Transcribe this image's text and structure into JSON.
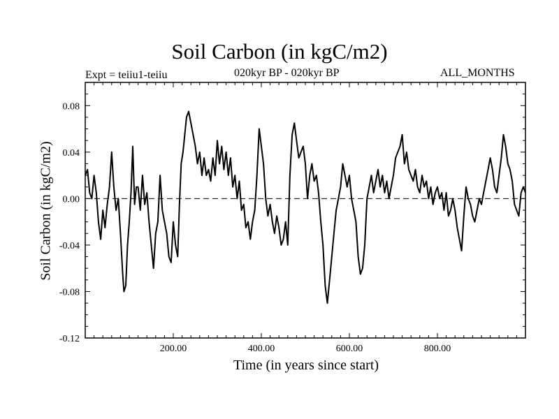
{
  "chart_data": {
    "type": "line",
    "title": "Soil Carbon (in kgC/m2)",
    "subtitle_left": "Expt = teiiu1-teiiu",
    "subtitle_center": "020kyr BP - 020kyr BP",
    "subtitle_right": "ALL_MONTHS",
    "xlabel": "Time (in years since start)",
    "ylabel": "Soil Carbon (in kgC/m2)",
    "xlim": [
      0,
      1000
    ],
    "ylim": [
      -0.12,
      0.1
    ],
    "x_ticks": [
      200,
      400,
      600,
      800
    ],
    "x_tick_labels": [
      "200.00",
      "400.00",
      "600.00",
      "800.00"
    ],
    "y_ticks": [
      -0.12,
      -0.08,
      -0.04,
      0.0,
      0.04,
      0.08
    ],
    "y_tick_labels": [
      "-0.12",
      "-0.08",
      "-0.04",
      "0.00",
      "0.04",
      "0.08"
    ],
    "reference_line": {
      "y": 0.0,
      "style": "dashed"
    },
    "line_color": "#000000",
    "series": [
      {
        "x": [
          0,
          5,
          10,
          15,
          20,
          25,
          30,
          35,
          40,
          45,
          50,
          55,
          60,
          65,
          70,
          75,
          80,
          85,
          88,
          92,
          96,
          100,
          104,
          108,
          112,
          116,
          120,
          125,
          130,
          135,
          140,
          145,
          150,
          155,
          160,
          165,
          170,
          175,
          180,
          185,
          190,
          195,
          200,
          205,
          210,
          214,
          218,
          222,
          226,
          230,
          235,
          240,
          245,
          250,
          255,
          260,
          265,
          270,
          275,
          280,
          285,
          290,
          295,
          300,
          305,
          310,
          315,
          320,
          325,
          330,
          335,
          340,
          345,
          350,
          355,
          360,
          365,
          370,
          375,
          380,
          385,
          390,
          395,
          400,
          405,
          410,
          415,
          420,
          425,
          430,
          435,
          440,
          445,
          450,
          455,
          460,
          465,
          470,
          475,
          480,
          485,
          490,
          495,
          500,
          505,
          510,
          515,
          520,
          525,
          530,
          535,
          540,
          545,
          550,
          555,
          560,
          565,
          570,
          575,
          580,
          585,
          590,
          595,
          600,
          605,
          610,
          615,
          620,
          625,
          630,
          635,
          640,
          645,
          650,
          655,
          660,
          665,
          670,
          675,
          680,
          685,
          690,
          695,
          700,
          705,
          710,
          715,
          720,
          725,
          730,
          735,
          740,
          745,
          750,
          755,
          760,
          765,
          770,
          775,
          780,
          785,
          790,
          795,
          800,
          805,
          810,
          815,
          820,
          825,
          830,
          835,
          840,
          845,
          850,
          855,
          860,
          865,
          870,
          875,
          880,
          885,
          890,
          895,
          900,
          905,
          910,
          915,
          920,
          925,
          930,
          935,
          940,
          945,
          950,
          955,
          960,
          965,
          970,
          975,
          980,
          985,
          990,
          995,
          1000
        ],
        "y": [
          0.02,
          0.025,
          0.005,
          0.0,
          0.02,
          0.005,
          -0.02,
          -0.035,
          -0.01,
          -0.025,
          -0.005,
          0.01,
          0.04,
          0.01,
          -0.01,
          0.0,
          -0.03,
          -0.065,
          -0.08,
          -0.075,
          -0.04,
          -0.02,
          0.005,
          0.045,
          -0.005,
          0.01,
          0.01,
          -0.01,
          0.02,
          -0.005,
          0.005,
          -0.02,
          -0.04,
          -0.06,
          -0.03,
          -0.02,
          0.02,
          -0.01,
          -0.02,
          -0.03,
          -0.05,
          -0.055,
          -0.02,
          -0.04,
          -0.05,
          -0.005,
          0.03,
          0.04,
          0.055,
          0.07,
          0.075,
          0.065,
          0.055,
          0.045,
          0.03,
          0.04,
          0.02,
          0.035,
          0.02,
          0.025,
          0.015,
          0.035,
          0.02,
          0.05,
          0.03,
          0.045,
          0.025,
          0.04,
          0.02,
          0.035,
          0.01,
          0.02,
          0.0,
          0.015,
          -0.01,
          -0.005,
          -0.025,
          -0.02,
          -0.035,
          -0.02,
          -0.01,
          0.02,
          0.06,
          0.045,
          0.03,
          0.0,
          -0.015,
          -0.005,
          -0.02,
          -0.03,
          -0.015,
          -0.025,
          -0.04,
          -0.035,
          -0.02,
          -0.04,
          0.02,
          0.055,
          0.065,
          0.05,
          0.035,
          0.04,
          0.045,
          0.03,
          0.0,
          0.02,
          0.03,
          0.015,
          0.02,
          0.005,
          -0.02,
          -0.04,
          -0.075,
          -0.09,
          -0.07,
          -0.05,
          -0.03,
          -0.01,
          0.0,
          0.01,
          0.03,
          0.02,
          0.01,
          0.02,
          0.0,
          -0.01,
          -0.02,
          -0.05,
          -0.065,
          -0.06,
          -0.04,
          0.0,
          0.01,
          0.02,
          0.005,
          0.015,
          0.025,
          0.01,
          0.02,
          0.005,
          0.015,
          0.0,
          0.01,
          0.02,
          0.035,
          0.04,
          0.045,
          0.055,
          0.03,
          0.04,
          0.025,
          0.02,
          0.015,
          0.025,
          0.01,
          0.005,
          0.02,
          0.01,
          0.015,
          0.0,
          0.01,
          -0.005,
          0.005,
          0.01,
          0.0,
          0.005,
          -0.01,
          0.005,
          -0.015,
          -0.01,
          0.0,
          -0.01,
          -0.025,
          -0.035,
          -0.045,
          -0.015,
          0.01,
          0.0,
          -0.005,
          -0.015,
          -0.02,
          -0.01,
          0.0,
          -0.005,
          0.005,
          0.015,
          0.025,
          0.035,
          0.025,
          0.01,
          0.005,
          0.02,
          0.035,
          0.055,
          0.045,
          0.03,
          0.025,
          0.015,
          -0.005,
          -0.01,
          -0.015,
          0.005,
          0.01,
          0.005
        ]
      }
    ]
  }
}
